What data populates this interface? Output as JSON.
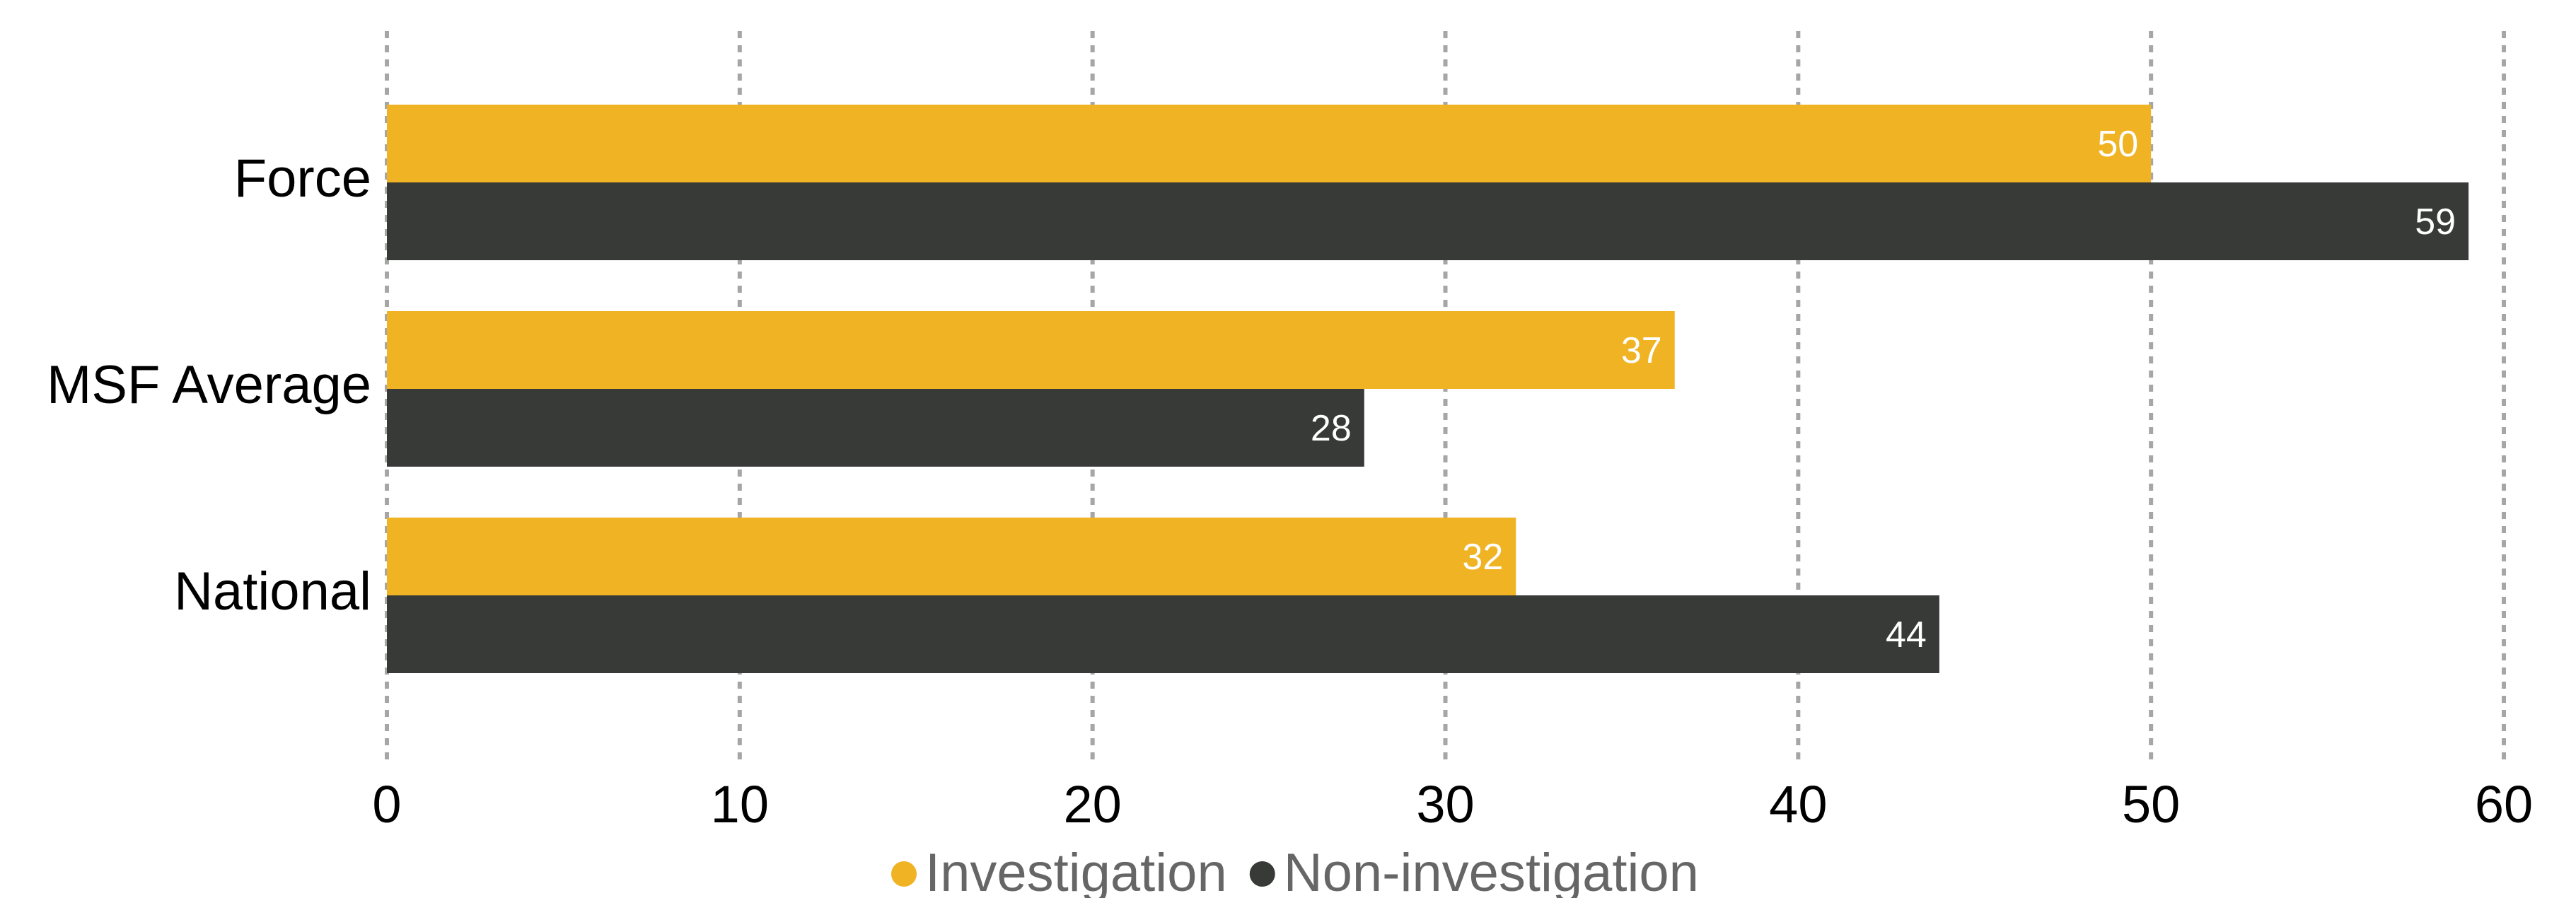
{
  "chart_data": {
    "type": "bar",
    "orientation": "horizontal",
    "categories": [
      "Force",
      "MSF Average",
      "National"
    ],
    "series": [
      {
        "name": "Investigation",
        "color": "#F0B323",
        "values": [
          50,
          36.5,
          32
        ],
        "labels": [
          "50",
          "37",
          "32"
        ]
      },
      {
        "name": "Non-investigation",
        "color": "#383A38",
        "values": [
          59,
          27.7,
          44
        ],
        "labels": [
          "59",
          "28",
          "44"
        ]
      }
    ],
    "x_ticks": [
      "0",
      "10",
      "20",
      "30",
      "40",
      "50",
      "60"
    ],
    "xlim": [
      0,
      60
    ],
    "grid": "vertical dotted",
    "legend": "bottom-center",
    "gridline_color": "#A6A6A6"
  }
}
